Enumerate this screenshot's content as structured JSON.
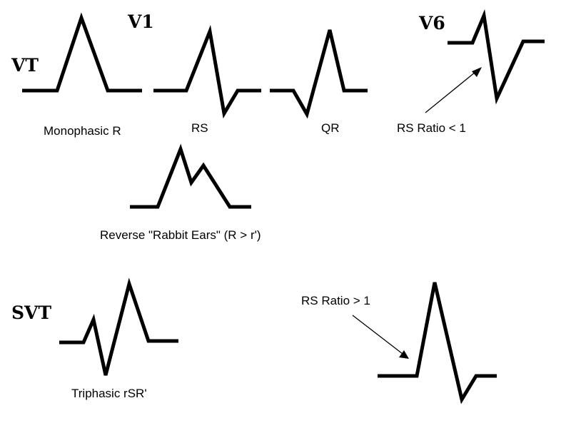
{
  "headings": {
    "v1": "V1",
    "v6": "V6",
    "vt": "VT",
    "svt": "SVT"
  },
  "captions": {
    "monophasic_r": "Monophasic R",
    "rs": "RS",
    "qr": "QR",
    "rs_ratio_lt": "RS Ratio < 1",
    "rabbit_ears": "Reverse \"Rabbit Ears\" (R > r')",
    "rs_ratio_gt": "RS Ratio > 1",
    "triphasic": "Triphasic rSR'"
  },
  "colors": {
    "stroke": "#000000",
    "background": "#ffffff"
  }
}
